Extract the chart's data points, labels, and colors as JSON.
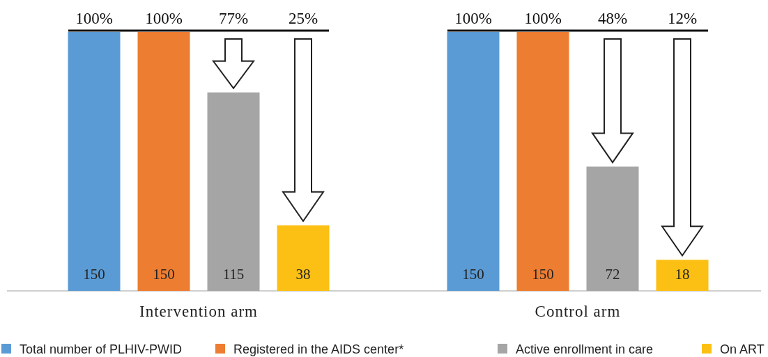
{
  "chart_data": {
    "type": "bar",
    "categories": [
      "Intervention arm",
      "Control arm"
    ],
    "series": [
      {
        "name": "Total number of PLHIV-PWID",
        "color": "#5b9bd5",
        "values": [
          150,
          150
        ]
      },
      {
        "name": "Registered in the AIDS center*",
        "color": "#ed7d31",
        "values": [
          150,
          150
        ]
      },
      {
        "name": "Active enrollment in care",
        "color": "#a5a5a5",
        "values": [
          115,
          72
        ]
      },
      {
        "name": "On ART",
        "color": "#fcc014",
        "values": [
          38,
          18
        ]
      }
    ],
    "data_labels": true,
    "legend": "bottom",
    "annotations": [
      "100%",
      "100%",
      "77%",
      "25%",
      "100%",
      "100%",
      "48%",
      "12%"
    ]
  }
}
